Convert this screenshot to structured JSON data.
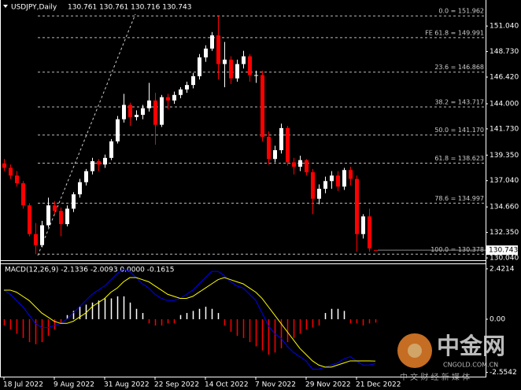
{
  "chart_data": [
    {
      "type": "candlestick",
      "title": "USDJPY,Daily",
      "subtitle": "130.761 130.761 130.716 130.743",
      "categories": [
        "18 Jul 2022",
        null,
        null,
        null,
        null,
        null,
        null,
        null,
        "9 Aug 2022",
        null,
        null,
        null,
        null,
        null,
        null,
        null,
        "31 Aug 2022",
        null,
        null,
        null,
        null,
        null,
        null,
        null,
        "22 Sep 2022",
        null,
        null,
        null,
        null,
        null,
        null,
        null,
        "14 Oct 2022",
        null,
        null,
        null,
        null,
        null,
        null,
        null,
        "7 Nov 2022",
        null,
        null,
        null,
        null,
        null,
        null,
        null,
        "29 Nov 2022",
        null,
        null,
        null,
        null,
        null,
        null,
        null,
        "21 Dec 2022",
        null,
        null,
        null
      ],
      "candles": [
        [
          138.6,
          139.0,
          137.9,
          138.2
        ],
        [
          138.2,
          138.5,
          137.2,
          137.5
        ],
        [
          137.5,
          137.9,
          136.5,
          136.8
        ],
        [
          136.8,
          137.0,
          134.5,
          134.8
        ],
        [
          134.8,
          135.0,
          132.0,
          132.2
        ],
        [
          132.2,
          133.2,
          130.378,
          131.2
        ],
        [
          131.2,
          133.4,
          131.0,
          133.0
        ],
        [
          133.0,
          135.5,
          132.8,
          134.8
        ],
        [
          134.8,
          135.2,
          134.0,
          134.3
        ],
        [
          134.3,
          134.6,
          132.0,
          133.1
        ],
        [
          133.1,
          134.8,
          132.9,
          134.5
        ],
        [
          134.5,
          136.0,
          134.2,
          135.8
        ],
        [
          135.8,
          137.2,
          135.5,
          136.9
        ],
        [
          136.9,
          138.1,
          136.6,
          137.9
        ],
        [
          137.9,
          139.1,
          137.6,
          138.8
        ],
        [
          138.8,
          139.0,
          137.9,
          138.5
        ],
        [
          138.5,
          139.4,
          138.2,
          139.1
        ],
        [
          139.1,
          140.8,
          138.9,
          140.6
        ],
        [
          140.6,
          142.9,
          140.4,
          142.6
        ],
        [
          142.6,
          144.9,
          142.3,
          143.9
        ],
        [
          143.9,
          144.1,
          142.0,
          142.8
        ],
        [
          142.8,
          143.4,
          142.5,
          143.0
        ],
        [
          143.0,
          143.9,
          142.6,
          143.6
        ],
        [
          143.6,
          145.9,
          143.3,
          144.3
        ],
        [
          144.3,
          145.0,
          140.3,
          142.1
        ],
        [
          142.1,
          144.8,
          141.9,
          144.6
        ],
        [
          144.6,
          144.9,
          143.5,
          144.3
        ],
        [
          144.3,
          145.1,
          144.0,
          144.8
        ],
        [
          144.8,
          145.5,
          144.5,
          145.3
        ],
        [
          145.3,
          146.0,
          145.0,
          145.7
        ],
        [
          145.7,
          146.8,
          145.4,
          146.5
        ],
        [
          146.5,
          148.5,
          146.2,
          148.2
        ],
        [
          148.2,
          149.3,
          147.8,
          149.0
        ],
        [
          149.0,
          150.5,
          148.8,
          150.2
        ],
        [
          150.2,
          151.962,
          146.2,
          147.6
        ],
        [
          147.6,
          149.6,
          145.5,
          148.0
        ],
        [
          148.0,
          148.3,
          145.8,
          146.3
        ],
        [
          146.3,
          148.0,
          146.0,
          147.6
        ],
        [
          147.6,
          148.8,
          147.2,
          148.3
        ],
        [
          148.3,
          148.5,
          146.0,
          146.6
        ],
        [
          146.6,
          147.0,
          145.9,
          146.6
        ],
        [
          146.6,
          147.0,
          140.6,
          141.0
        ],
        [
          141.0,
          141.5,
          138.5,
          139.0
        ],
        [
          139.0,
          140.2,
          138.7,
          139.8
        ],
        [
          139.8,
          142.2,
          139.5,
          141.8
        ],
        [
          141.8,
          142.0,
          138.4,
          138.7
        ],
        [
          138.7,
          139.1,
          137.6,
          138.3
        ],
        [
          138.3,
          139.3,
          137.9,
          138.9
        ],
        [
          138.9,
          139.0,
          137.5,
          137.8
        ],
        [
          137.8,
          138.1,
          134.0,
          135.4
        ],
        [
          135.4,
          136.7,
          134.9,
          136.3
        ],
        [
          136.3,
          137.4,
          135.9,
          137.0
        ],
        [
          137.0,
          137.9,
          136.3,
          137.5
        ],
        [
          137.5,
          137.9,
          136.1,
          136.5
        ],
        [
          136.5,
          138.2,
          136.2,
          138.0
        ],
        [
          138.0,
          138.3,
          136.6,
          137.2
        ],
        [
          137.2,
          137.5,
          130.6,
          132.2
        ],
        [
          132.2,
          134.0,
          131.8,
          133.8
        ],
        [
          133.8,
          134.5,
          130.6,
          130.9
        ],
        [
          130.761,
          130.761,
          130.716,
          130.743
        ]
      ],
      "up_color": "#ffffff",
      "down_color": "#ff0000",
      "ylim": [
        129.9,
        153.4
      ],
      "yticks": [
        {
          "value": 151.04,
          "label": "151.040"
        },
        {
          "value": 148.73,
          "label": "148.730"
        },
        {
          "value": 146.42,
          "label": "146.420"
        },
        {
          "value": 144,
          "label": "144.000"
        },
        {
          "value": 141.73,
          "label": "141.730"
        },
        {
          "value": 139.35,
          "label": "139.350"
        },
        {
          "value": 137.04,
          "label": "137.040"
        },
        {
          "value": 134.66,
          "label": "134.660"
        },
        {
          "value": 132.35,
          "label": "132.350"
        },
        {
          "value": 130.04,
          "label": "130.040"
        }
      ],
      "fib_levels": [
        {
          "label": "0.0 = 151.962",
          "value": 151.962
        },
        {
          "label": "FE 61.8 = 149.991",
          "value": 149.991
        },
        {
          "label": "23.6 = 146.868",
          "value": 146.868
        },
        {
          "label": "38.2 = 143.717",
          "value": 143.717
        },
        {
          "label": "50.0 = 141.170",
          "value": 141.17
        },
        {
          "label": "61.8 = 138.623",
          "value": 138.623
        },
        {
          "label": "78.6 = 134.997",
          "value": 134.997
        },
        {
          "label": "100.0 = 130.378",
          "value": 130.378
        }
      ]
    },
    {
      "type": "macd",
      "title": "MACD(12,26,9) -2.1336 -2.0093 0.0000 -0.1615",
      "ylim": [
        -2.72,
        2.72
      ],
      "yticks": [
        2.4214,
        {
          "value": 0,
          "label": "0.00"
        },
        -2.5542
      ],
      "histogram": {
        "pos_color": "#ffffff",
        "neg_color": "#ff0000",
        "values": [
          -0.3,
          -0.5,
          -0.7,
          -0.9,
          -1.1,
          -1.2,
          -1.1,
          -0.8,
          -0.5,
          -0.2,
          0.2,
          0.4,
          0.6,
          0.7,
          0.8,
          0.9,
          1.0,
          1.0,
          1.1,
          1.1,
          0.8,
          0.5,
          0.3,
          -0.2,
          -0.3,
          -0.3,
          -0.2,
          -0.2,
          0.2,
          0.3,
          0.4,
          0.5,
          0.6,
          0.5,
          0.3,
          -0.3,
          -0.6,
          -0.8,
          -0.9,
          -1.1,
          -1.3,
          -1.5,
          -1.7,
          -1.6,
          -1.4,
          -1.1,
          -0.9,
          -0.7,
          -0.5,
          -0.4,
          -0.3,
          0.3,
          0.5,
          0.5,
          0.4,
          -0.2,
          -0.2,
          -0.3,
          -0.2,
          -0.1615
        ]
      },
      "series": [
        {
          "color": "#0000ff",
          "values": [
            1.4,
            1.2,
            0.9,
            0.6,
            0.2,
            -0.2,
            -0.4,
            -0.4,
            -0.3,
            -0.2,
            0.0,
            0.3,
            0.6,
            0.9,
            1.2,
            1.4,
            1.6,
            1.9,
            2.2,
            2.4,
            2.3,
            2.0,
            1.7,
            1.5,
            1.2,
            1.0,
            0.9,
            0.9,
            1.0,
            1.2,
            1.4,
            1.7,
            2.0,
            2.3,
            2.3,
            2.1,
            1.8,
            1.6,
            1.5,
            1.2,
            0.9,
            0.3,
            -0.3,
            -0.7,
            -0.9,
            -1.3,
            -1.6,
            -1.8,
            -2.0,
            -2.4,
            -2.4,
            -2.3,
            -2.2,
            -2.1,
            -1.9,
            -1.8,
            -2.0,
            -2.2,
            -2.2,
            -2.1336
          ]
        },
        {
          "color": "#ffff00",
          "values": [
            1.4,
            1.4,
            1.3,
            1.1,
            0.9,
            0.6,
            0.3,
            0.1,
            -0.1,
            -0.2,
            -0.2,
            -0.1,
            0.1,
            0.3,
            0.6,
            0.8,
            1.0,
            1.3,
            1.5,
            1.8,
            2.0,
            2.0,
            1.9,
            1.8,
            1.6,
            1.4,
            1.2,
            1.1,
            1.0,
            1.0,
            1.1,
            1.3,
            1.5,
            1.7,
            1.9,
            2.0,
            1.9,
            1.8,
            1.7,
            1.5,
            1.3,
            1.0,
            0.6,
            0.2,
            -0.2,
            -0.6,
            -1.0,
            -1.4,
            -1.7,
            -2.0,
            -2.2,
            -2.3,
            -2.3,
            -2.2,
            -2.1,
            -2.0,
            -2.0,
            -2.0,
            -2.0,
            -2.0093
          ]
        }
      ]
    }
  ],
  "watermark": {
    "brand": "中金网",
    "site": "CNGOLD.COM.CN",
    "slogan": "中 文 财 经 新 媒 体"
  }
}
